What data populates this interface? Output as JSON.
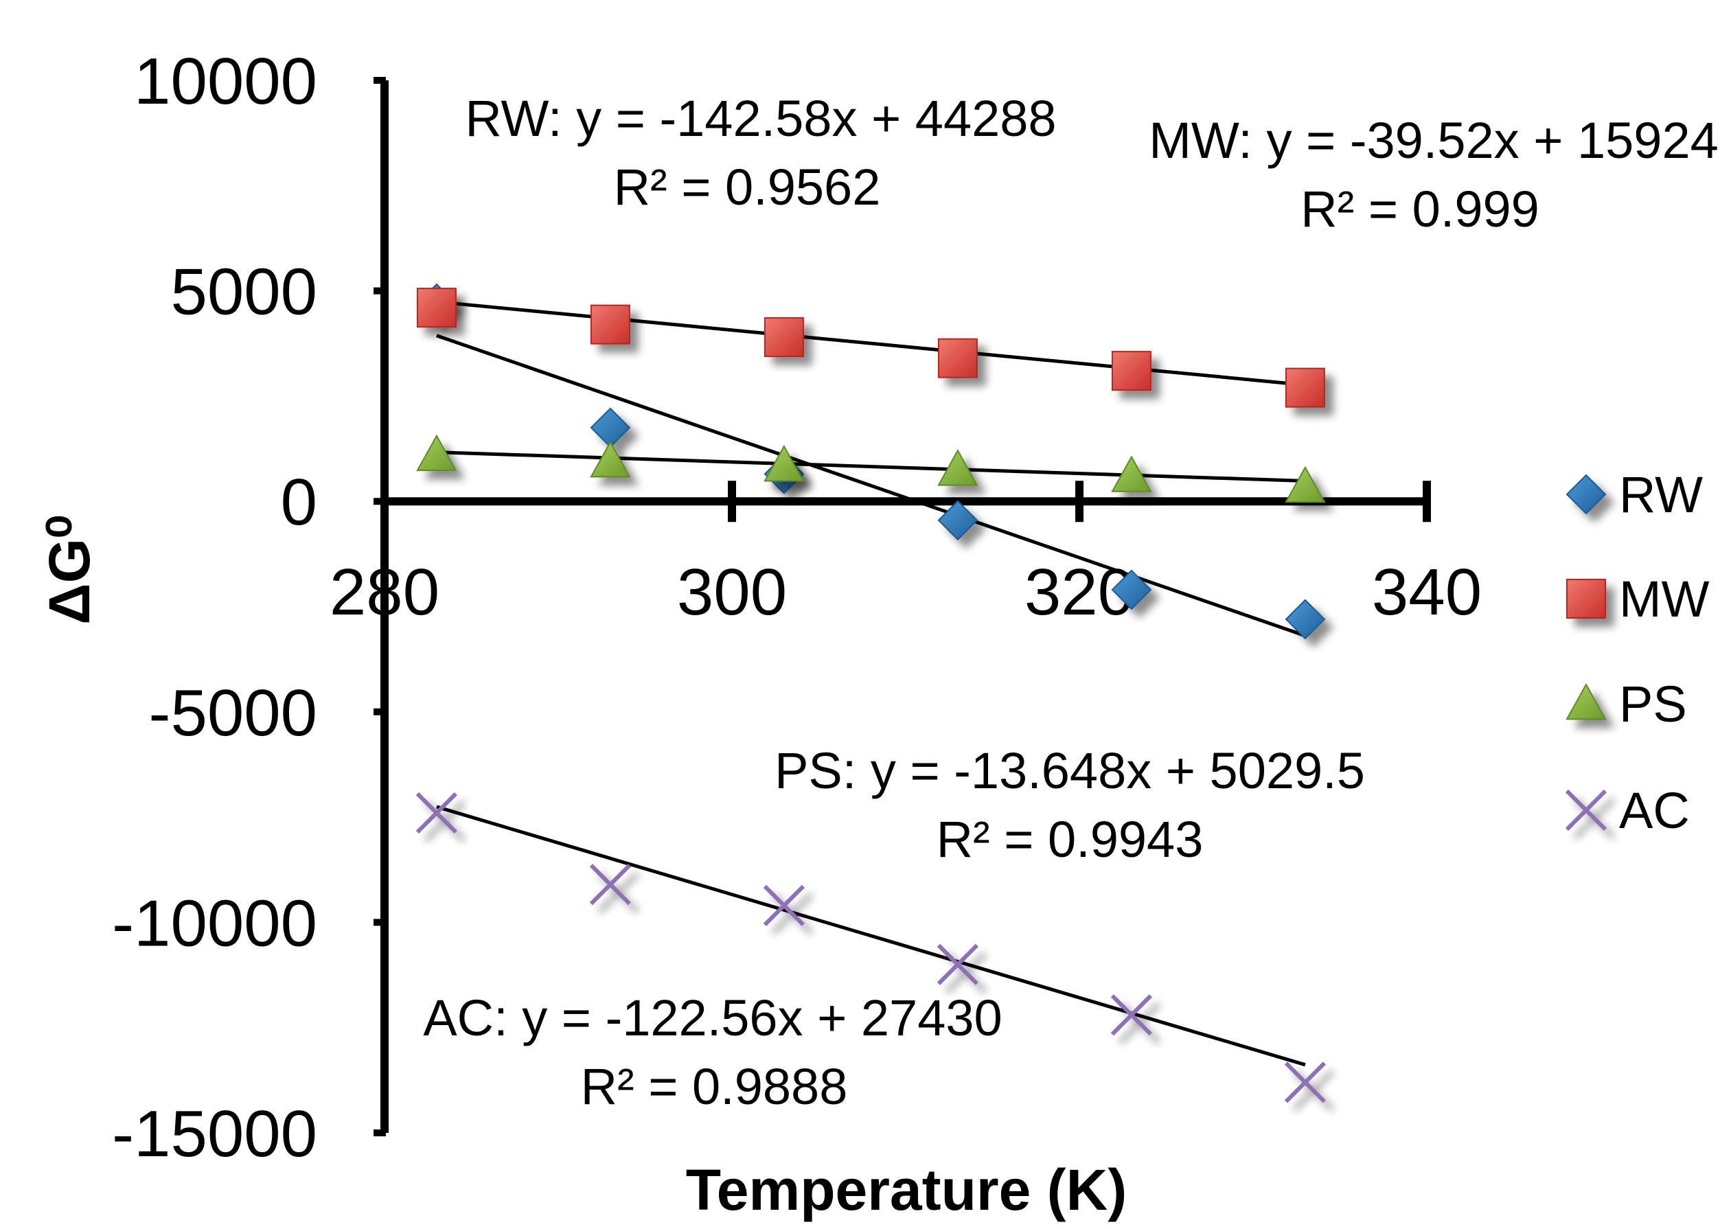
{
  "chart_data": {
    "type": "scatter",
    "title": "",
    "xlabel": "Temperature (K)",
    "ylabel": "ΔG⁰",
    "xlim": [
      280,
      340
    ],
    "ylim": [
      -15000,
      10000
    ],
    "x_ticks": [
      "280",
      "300",
      "320",
      "340"
    ],
    "y_ticks": [
      "10000",
      "5000",
      "0",
      "-5000",
      "-10000",
      "-15000"
    ],
    "x_tick_values": [
      280,
      300,
      320,
      340
    ],
    "y_tick_values": [
      10000,
      5000,
      0,
      -5000,
      -10000,
      -15000
    ],
    "legend_position": "right",
    "x": [
      283,
      293,
      303,
      313,
      323,
      333
    ],
    "series": [
      {
        "name": "RW",
        "marker": "diamond",
        "color": "#2e75b6",
        "values": [
          4700,
          1750,
          650,
          -450,
          -2100,
          -2800
        ],
        "trendline": [
          -142.58,
          44288
        ],
        "equation": "RW: y = -142.58x + 44288",
        "r2": "R² = 0.9562"
      },
      {
        "name": "MW",
        "marker": "square",
        "color": "#e8413c",
        "values": [
          4600,
          4200,
          3900,
          3400,
          3100,
          2700
        ],
        "trendline": [
          -39.52,
          15924
        ],
        "equation": "MW: y = -39.52x + 15924",
        "r2": "R² = 0.999"
      },
      {
        "name": "PS",
        "marker": "triangle",
        "color": "#8fbc3f",
        "values": [
          1100,
          950,
          850,
          750,
          600,
          350
        ],
        "trendline": [
          -13.648,
          5029.5
        ],
        "equation": "PS: y = -13.648x + 5029.5",
        "r2": "R² = 0.9943"
      },
      {
        "name": "AC",
        "marker": "cross",
        "color": "#8e6fb5",
        "values": [
          -7400,
          -9100,
          -9600,
          -11000,
          -12200,
          -13800
        ],
        "trendline": [
          -122.56,
          27430
        ],
        "equation": "AC: y = -122.56x + 27430",
        "r2": "R² = 0.9888"
      }
    ]
  }
}
